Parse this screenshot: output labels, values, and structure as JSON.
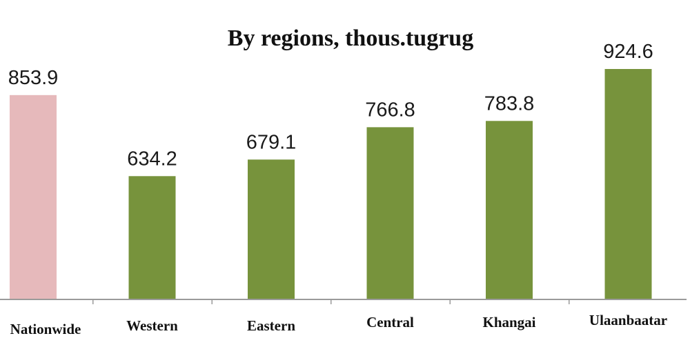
{
  "chart_data": {
    "type": "bar",
    "title": "By regions, thous.tugrug",
    "xlabel": "",
    "ylabel": "",
    "categories": [
      "Nationwide",
      "Western",
      "Eastern",
      "Central",
      "Khangai",
      "Ulaanbaatar"
    ],
    "values": [
      853.9,
      634.2,
      679.1,
      766.8,
      783.8,
      924.6
    ],
    "value_labels": [
      "853.9",
      "634.2",
      "679.1",
      "766.8",
      "783.8",
      "924.6"
    ],
    "colors": [
      "#e6b9bb",
      "#77933c",
      "#77933c",
      "#77933c",
      "#77933c",
      "#77933c"
    ],
    "ylim": [
      300,
      1000
    ],
    "grid": false,
    "legend": "none"
  }
}
